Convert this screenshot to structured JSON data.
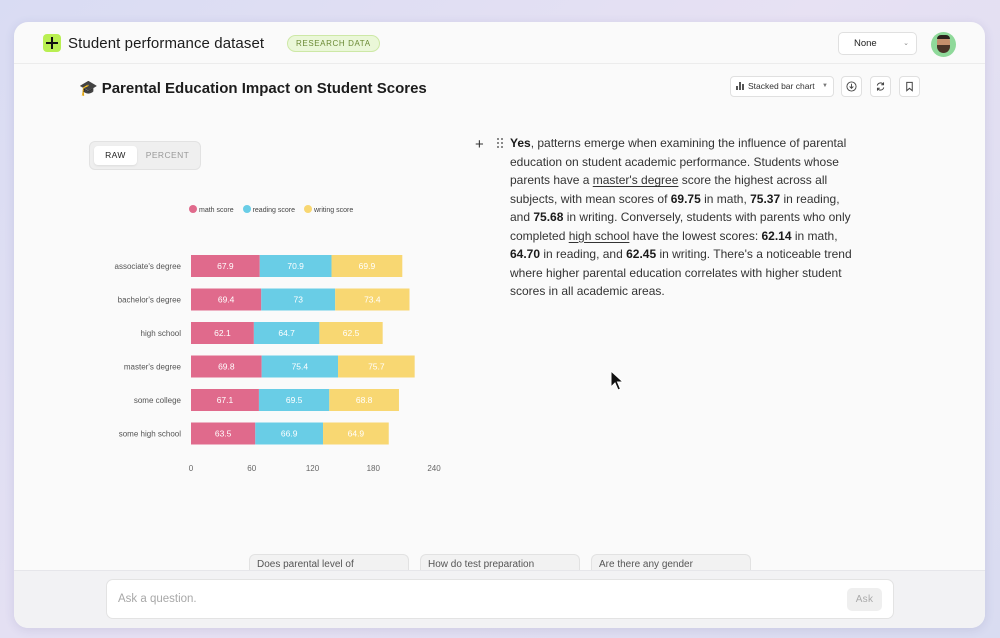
{
  "app": {
    "title": "Student performance dataset",
    "badge": "RESEARCH DATA",
    "select_value": "None"
  },
  "header": {
    "page_title": "Parental Education Impact on Student Scores",
    "title_icon": "graduation-cap-icon",
    "chart_type_label": "Stacked bar chart"
  },
  "toggle": {
    "raw": "RAW",
    "percent": "PERCENT",
    "active": "RAW"
  },
  "chart_data": {
    "type": "bar",
    "orientation": "horizontal",
    "stacked": true,
    "categories": [
      "associate's degree",
      "bachelor's degree",
      "high school",
      "master's degree",
      "some college",
      "some high school"
    ],
    "series": [
      {
        "name": "math score",
        "color": "#e06a8c",
        "values": [
          67.9,
          69.4,
          62.1,
          69.8,
          67.1,
          63.5
        ]
      },
      {
        "name": "reading score",
        "color": "#69cde6",
        "values": [
          70.9,
          73,
          64.7,
          75.4,
          69.5,
          66.9
        ]
      },
      {
        "name": "writing score",
        "color": "#f8d772",
        "values": [
          69.9,
          73.4,
          62.5,
          75.7,
          68.8,
          64.9
        ]
      }
    ],
    "xticks": [
      "0",
      "60",
      "120",
      "180",
      "240"
    ],
    "xlim": [
      0,
      240
    ],
    "legend_position": "top",
    "grid": false
  },
  "answer": {
    "segments": [
      {
        "text": "Yes",
        "style": "bold"
      },
      {
        "text": ", patterns emerge when examining the influence of parental education on student academic performance. Students whose parents have a ",
        "style": "normal"
      },
      {
        "text": "master's degree",
        "style": "underline"
      },
      {
        "text": " score the highest across all subjects, with mean scores of ",
        "style": "normal"
      },
      {
        "text": "69.75",
        "style": "bold"
      },
      {
        "text": " in math, ",
        "style": "normal"
      },
      {
        "text": "75.37",
        "style": "bold"
      },
      {
        "text": " in reading, and ",
        "style": "normal"
      },
      {
        "text": "75.68",
        "style": "bold"
      },
      {
        "text": " in writing. Conversely, students with parents who only completed ",
        "style": "normal"
      },
      {
        "text": "high school",
        "style": "underline"
      },
      {
        "text": " have the lowest scores: ",
        "style": "normal"
      },
      {
        "text": "62.14",
        "style": "bold"
      },
      {
        "text": " in math, ",
        "style": "normal"
      },
      {
        "text": "64.70",
        "style": "bold"
      },
      {
        "text": " in reading, and ",
        "style": "normal"
      },
      {
        "text": "62.45",
        "style": "bold"
      },
      {
        "text": " in writing. There's a noticeable trend where higher parental education correlates with higher student scores in all academic areas.",
        "style": "normal"
      }
    ]
  },
  "suggestions": [
    "Does parental level of",
    "How do test preparation",
    "Are there any gender"
  ],
  "ask": {
    "placeholder": "Ask a question.",
    "button": "Ask"
  }
}
